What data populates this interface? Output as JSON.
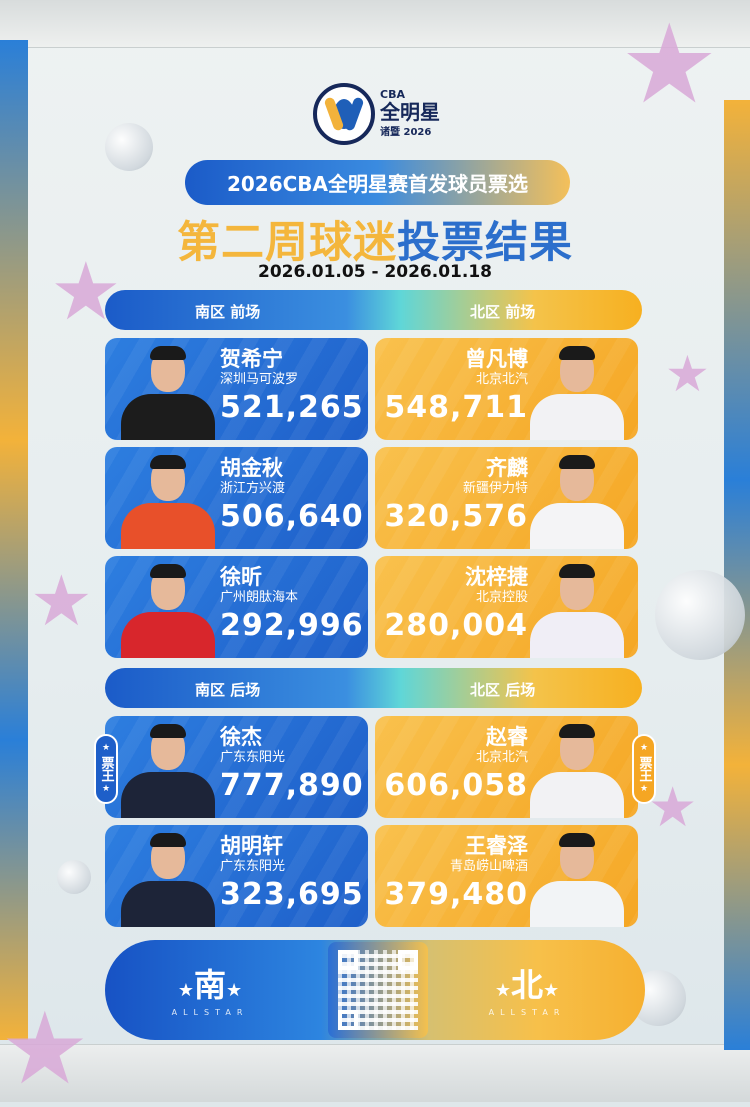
{
  "logo": {
    "brand": "CBA",
    "title": "全明星",
    "subtitle": "诸暨 2026"
  },
  "header": {
    "pill_title": "2026CBA全明星赛首发球员票选",
    "big_title_part1": "第二周球迷",
    "big_title_part2": "投票结果",
    "date_range": "2026.01.05 - 2026.01.18"
  },
  "colors": {
    "south": "#1e5fc9",
    "north": "#f5a623"
  },
  "sections": [
    {
      "south_label": "南区 前场",
      "north_label": "北区 前场",
      "south": [
        {
          "name": "贺希宁",
          "team": "深圳马可波罗",
          "votes": "521,265",
          "jersey": "#1c1c1c"
        },
        {
          "name": "胡金秋",
          "team": "浙江方兴渡",
          "votes": "506,640",
          "jersey": "#e8502a"
        },
        {
          "name": "徐昕",
          "team": "广州朗肽海本",
          "votes": "292,996",
          "jersey": "#d8262c"
        }
      ],
      "north": [
        {
          "name": "曾凡博",
          "team": "北京北汽",
          "votes": "548,711",
          "jersey": "#f2f2f4"
        },
        {
          "name": "齐麟",
          "team": "新疆伊力特",
          "votes": "320,576",
          "jersey": "#f4f4f6"
        },
        {
          "name": "沈梓捷",
          "team": "北京控股",
          "votes": "280,004",
          "jersey": "#f0eef6"
        }
      ]
    },
    {
      "south_label": "南区 后场",
      "north_label": "北区 后场",
      "south": [
        {
          "name": "徐杰",
          "team": "广东东阳光",
          "votes": "777,890",
          "jersey": "#1d2438",
          "badge": "票王"
        },
        {
          "name": "胡明轩",
          "team": "广东东阳光",
          "votes": "323,695",
          "jersey": "#1d2438"
        }
      ],
      "north": [
        {
          "name": "赵睿",
          "team": "北京北汽",
          "votes": "606,058",
          "jersey": "#f2f2f4",
          "badge": "票王"
        },
        {
          "name": "王睿泽",
          "team": "青岛崂山啤酒",
          "votes": "379,480",
          "jersey": "#f2f4f6"
        }
      ]
    }
  ],
  "footer": {
    "south_char": "南",
    "north_char": "北",
    "allstar": "ALLSTAR",
    "star": "★"
  }
}
